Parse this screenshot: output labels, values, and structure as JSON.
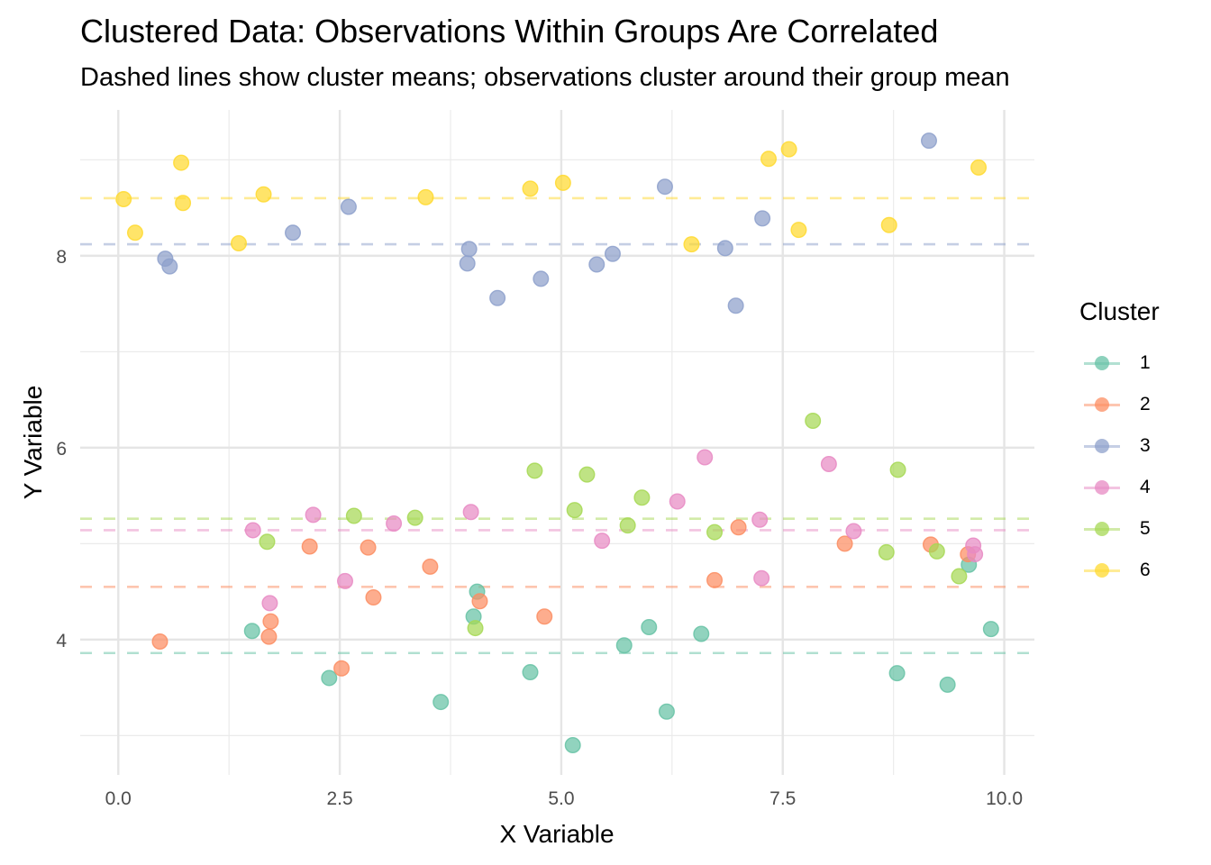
{
  "chart_data": {
    "type": "scatter",
    "title": "Clustered Data: Observations Within Groups Are Correlated",
    "subtitle": "Dashed lines show cluster means; observations cluster around their group mean",
    "xlabel": "X Variable",
    "ylabel": "Y Variable",
    "xlim": [
      -0.43,
      10.34
    ],
    "ylim": [
      2.59,
      9.52
    ],
    "x_ticks": [
      0.0,
      2.5,
      5.0,
      7.5,
      10.0
    ],
    "x_tick_labels": [
      "0.0",
      "2.5",
      "5.0",
      "7.5",
      "10.0"
    ],
    "y_ticks": [
      4,
      6,
      8
    ],
    "y_tick_labels": [
      "4",
      "6",
      "8"
    ],
    "x_minor": [
      1.25,
      3.75,
      6.25,
      8.75
    ],
    "y_minor": [
      3,
      5,
      7,
      9
    ],
    "grid": true,
    "legend": {
      "title": "Cluster",
      "position": "right"
    },
    "series": [
      {
        "name": "1",
        "color": "#66C2A5",
        "mean": 3.86,
        "points": [
          [
            1.51,
            4.09
          ],
          [
            2.38,
            3.6
          ],
          [
            3.64,
            3.35
          ],
          [
            4.01,
            4.24
          ],
          [
            4.05,
            4.5
          ],
          [
            4.65,
            3.66
          ],
          [
            5.13,
            2.9
          ],
          [
            5.71,
            3.94
          ],
          [
            5.99,
            4.13
          ],
          [
            6.19,
            3.25
          ],
          [
            6.58,
            4.06
          ],
          [
            8.79,
            3.65
          ],
          [
            9.36,
            3.53
          ],
          [
            9.6,
            4.78
          ],
          [
            9.85,
            4.11
          ]
        ]
      },
      {
        "name": "2",
        "color": "#FC8D62",
        "mean": 4.55,
        "points": [
          [
            0.47,
            3.98
          ],
          [
            1.7,
            4.03
          ],
          [
            1.72,
            4.19
          ],
          [
            2.16,
            4.97
          ],
          [
            2.52,
            3.7
          ],
          [
            2.82,
            4.96
          ],
          [
            2.88,
            4.44
          ],
          [
            3.52,
            4.76
          ],
          [
            4.08,
            4.4
          ],
          [
            4.81,
            4.24
          ],
          [
            6.73,
            4.62
          ],
          [
            7.0,
            5.17
          ],
          [
            8.2,
            5.0
          ],
          [
            9.17,
            4.99
          ],
          [
            9.59,
            4.89
          ]
        ]
      },
      {
        "name": "3",
        "color": "#8DA0CB",
        "mean": 8.12,
        "points": [
          [
            0.53,
            7.97
          ],
          [
            0.58,
            7.89
          ],
          [
            1.97,
            8.24
          ],
          [
            2.6,
            8.51
          ],
          [
            3.94,
            7.92
          ],
          [
            3.96,
            8.07
          ],
          [
            4.28,
            7.56
          ],
          [
            4.77,
            7.76
          ],
          [
            5.4,
            7.91
          ],
          [
            5.58,
            8.02
          ],
          [
            6.17,
            8.72
          ],
          [
            6.85,
            8.08
          ],
          [
            6.97,
            7.48
          ],
          [
            7.27,
            8.39
          ],
          [
            9.15,
            9.2
          ]
        ]
      },
      {
        "name": "4",
        "color": "#E78AC3",
        "mean": 5.14,
        "points": [
          [
            1.52,
            5.14
          ],
          [
            1.71,
            4.38
          ],
          [
            2.2,
            5.3
          ],
          [
            2.56,
            4.61
          ],
          [
            3.11,
            5.21
          ],
          [
            3.98,
            5.33
          ],
          [
            5.46,
            5.03
          ],
          [
            6.31,
            5.44
          ],
          [
            6.62,
            5.9
          ],
          [
            7.24,
            5.25
          ],
          [
            7.26,
            4.64
          ],
          [
            8.02,
            5.83
          ],
          [
            8.3,
            5.13
          ],
          [
            9.65,
            4.98
          ],
          [
            9.67,
            4.89
          ]
        ]
      },
      {
        "name": "5",
        "color": "#A6D854",
        "mean": 5.26,
        "points": [
          [
            1.68,
            5.02
          ],
          [
            2.66,
            5.29
          ],
          [
            3.35,
            5.27
          ],
          [
            4.03,
            4.12
          ],
          [
            4.7,
            5.76
          ],
          [
            5.15,
            5.35
          ],
          [
            5.29,
            5.72
          ],
          [
            5.75,
            5.19
          ],
          [
            5.91,
            5.48
          ],
          [
            6.73,
            5.12
          ],
          [
            7.84,
            6.28
          ],
          [
            8.67,
            4.91
          ],
          [
            8.8,
            5.77
          ],
          [
            9.24,
            4.92
          ],
          [
            9.49,
            4.66
          ]
        ]
      },
      {
        "name": "6",
        "color": "#FFD92F",
        "mean": 8.6,
        "points": [
          [
            0.06,
            8.59
          ],
          [
            0.19,
            8.24
          ],
          [
            0.71,
            8.97
          ],
          [
            0.73,
            8.55
          ],
          [
            1.36,
            8.13
          ],
          [
            1.64,
            8.64
          ],
          [
            3.47,
            8.61
          ],
          [
            4.65,
            8.7
          ],
          [
            5.02,
            8.76
          ],
          [
            6.47,
            8.12
          ],
          [
            7.34,
            9.01
          ],
          [
            7.57,
            9.11
          ],
          [
            7.68,
            8.27
          ],
          [
            8.7,
            8.32
          ],
          [
            9.71,
            8.92
          ]
        ]
      }
    ]
  }
}
